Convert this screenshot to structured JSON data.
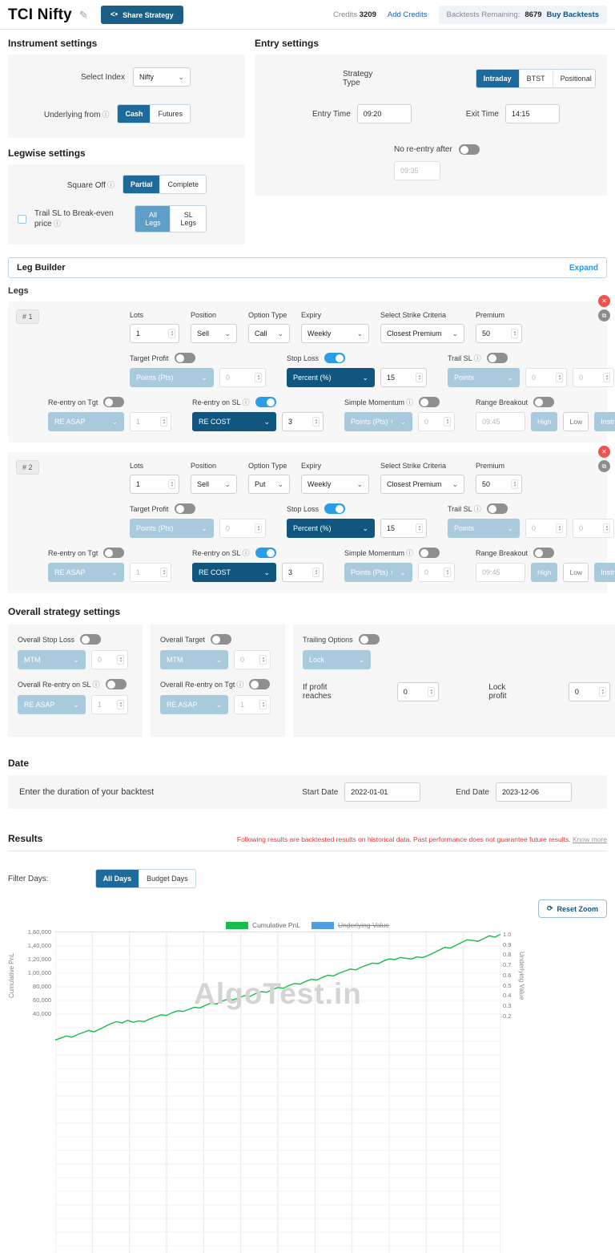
{
  "header": {
    "title": "TCI Nifty",
    "share_button": "Share Strategy",
    "credits_label": "Credits",
    "credits_value": "3209",
    "add_credits_link": "Add Credits",
    "backtests_label": "Backtests Remaining:",
    "backtests_value": "8679",
    "buy_backtests_link": "Buy Backtests"
  },
  "instrument_settings": {
    "title": "Instrument settings",
    "select_index_label": "Select Index",
    "select_index_value": "Nifty",
    "underlying_from_label": "Underlying from",
    "underlying_options": [
      "Cash",
      "Futures"
    ]
  },
  "legwise_settings": {
    "title": "Legwise settings",
    "square_off_label": "Square Off",
    "square_off_options": [
      "Partial",
      "Complete"
    ],
    "trail_sl_breakeven_label": "Trail SL to Break-even price",
    "trail_sl_options": [
      "All Legs",
      "SL Legs"
    ]
  },
  "entry_settings": {
    "title": "Entry settings",
    "strategy_type_label": "Strategy Type",
    "strategy_type_options": [
      "Intraday",
      "BTST",
      "Positional"
    ],
    "entry_time_label": "Entry Time",
    "entry_time_value": "09:20",
    "exit_time_label": "Exit Time",
    "exit_time_value": "14:15",
    "no_reentry_after_label": "No re-entry after",
    "no_reentry_after_value": "09:35"
  },
  "leg_builder": {
    "title": "Leg Builder",
    "expand_link": "Expand"
  },
  "legs_section_title": "Legs",
  "leg_labels": {
    "lots": "Lots",
    "position": "Position",
    "option_type": "Option Type",
    "expiry": "Expiry",
    "strike_criteria": "Select Strike Criteria",
    "premium": "Premium",
    "target_profit": "Target Profit",
    "stop_loss": "Stop Loss",
    "trail_sl": "Trail SL",
    "reentry_tgt": "Re-entry on Tgt",
    "reentry_sl": "Re-entry on SL",
    "simple_momentum": "Simple Momentum",
    "range_breakout": "Range Breakout",
    "high": "High",
    "low": "Low"
  },
  "legs": [
    {
      "id": "# 1",
      "lots": "1",
      "position": "Sell",
      "option_type": "Call",
      "expiry": "Weekly",
      "strike_criteria": "Closest Premium",
      "premium": "50",
      "target_profit_unit": "Points (Pts)",
      "target_profit_value": "0",
      "stop_loss_unit": "Percent (%)",
      "stop_loss_value": "15",
      "trail_sl_unit": "Points",
      "trail_sl_value_1": "0",
      "trail_sl_value_2": "0",
      "reentry_tgt_mode": "RE ASAP",
      "reentry_tgt_count": "1",
      "reentry_sl_mode": "RE COST",
      "reentry_sl_count": "3",
      "momentum_unit": "Points (Pts) ↑",
      "momentum_value": "0",
      "range_time": "09:45",
      "range_instrument": "Instrument"
    },
    {
      "id": "# 2",
      "lots": "1",
      "position": "Sell",
      "option_type": "Put",
      "expiry": "Weekly",
      "strike_criteria": "Closest Premium",
      "premium": "50",
      "target_profit_unit": "Points (Pts)",
      "target_profit_value": "0",
      "stop_loss_unit": "Percent (%)",
      "stop_loss_value": "15",
      "trail_sl_unit": "Points",
      "trail_sl_value_1": "0",
      "trail_sl_value_2": "0",
      "reentry_tgt_mode": "RE ASAP",
      "reentry_tgt_count": "1",
      "reentry_sl_mode": "RE COST",
      "reentry_sl_count": "3",
      "momentum_unit": "Points (Pts) ↑",
      "momentum_value": "0",
      "range_time": "09:45",
      "range_instrument": "Instrument"
    }
  ],
  "overall_settings": {
    "title": "Overall strategy settings",
    "stop_loss_label": "Overall Stop Loss",
    "stop_loss_unit": "MTM",
    "stop_loss_value": "0",
    "reentry_sl_label": "Overall Re-entry on SL",
    "reentry_sl_mode": "RE ASAP",
    "reentry_sl_count": "1",
    "target_label": "Overall Target",
    "target_unit": "MTM",
    "target_value": "0",
    "reentry_tgt_label": "Overall Re-entry on Tgt",
    "reentry_tgt_mode": "RE ASAP",
    "reentry_tgt_count": "1",
    "trailing_label": "Trailing Options",
    "trailing_mode": "Lock",
    "if_profit_label": "If profit reaches",
    "if_profit_value": "0",
    "lock_profit_label": "Lock profit",
    "lock_profit_value": "0"
  },
  "date_section": {
    "title": "Date",
    "prompt": "Enter the duration of your backtest",
    "start_label": "Start Date",
    "start_value": "2022-01-01",
    "end_label": "End Date",
    "end_value": "2023-12-06"
  },
  "results": {
    "title": "Results",
    "disclaimer": "Following results are backtested results on historical data. Past performance does not guarantee future results.",
    "know_more_label": "Know more",
    "filter_days_label": "Filter Days:",
    "filter_options": [
      "All Days",
      "Budget Days"
    ],
    "reset_zoom_label": "Reset Zoom"
  },
  "chart_data": {
    "type": "line",
    "title": "",
    "xlabel": "",
    "ylabel_left": "Cumulative PnL",
    "ylabel_right": "Underlying Value",
    "watermark": "AlgoTest.in",
    "grid": true,
    "legend_position": "top",
    "y_left_ticks": [
      "1,60,000",
      "1,40,000",
      "1,20,000",
      "1,00,000",
      "80,000",
      "60,000",
      "40,000"
    ],
    "y_right_ticks": [
      "1.0",
      "0.9",
      "0.8",
      "0.7",
      "0.6",
      "0.5",
      "0.4",
      "0.3",
      "0.2"
    ],
    "y_left_top_value": 160000,
    "y_left_tick_step": 20000,
    "y_right_range": [
      0.2,
      1.0
    ],
    "legend": [
      {
        "name": "Cumulative PnL",
        "color": "#18bc4c",
        "active": true
      },
      {
        "name": "Underlying Value",
        "color": "#4d9fdc",
        "active": false
      }
    ],
    "series": [
      {
        "name": "Cumulative PnL",
        "color": "#18bc4c",
        "values": [
          2000,
          5000,
          8000,
          6000,
          10000,
          13000,
          16000,
          14000,
          18000,
          22000,
          26000,
          29000,
          27000,
          31000,
          28000,
          30000,
          29000,
          33000,
          36000,
          39000,
          38000,
          42000,
          45000,
          44000,
          47000,
          50000,
          49000,
          53000,
          56000,
          55000,
          59000,
          62000,
          61000,
          64000,
          67000,
          66000,
          70000,
          73000,
          72000,
          76000,
          79000,
          78000,
          82000,
          85000,
          84000,
          88000,
          91000,
          90000,
          94000,
          97000,
          96000,
          100000,
          103000,
          106000,
          105000,
          109000,
          112000,
          115000,
          114000,
          118000,
          121000,
          120000,
          123000,
          122000,
          121000,
          124000,
          123000,
          126000,
          130000,
          134000,
          138000,
          137000,
          141000,
          145000,
          149000,
          148000,
          147000,
          151000,
          155000,
          153000,
          157000
        ]
      }
    ]
  }
}
